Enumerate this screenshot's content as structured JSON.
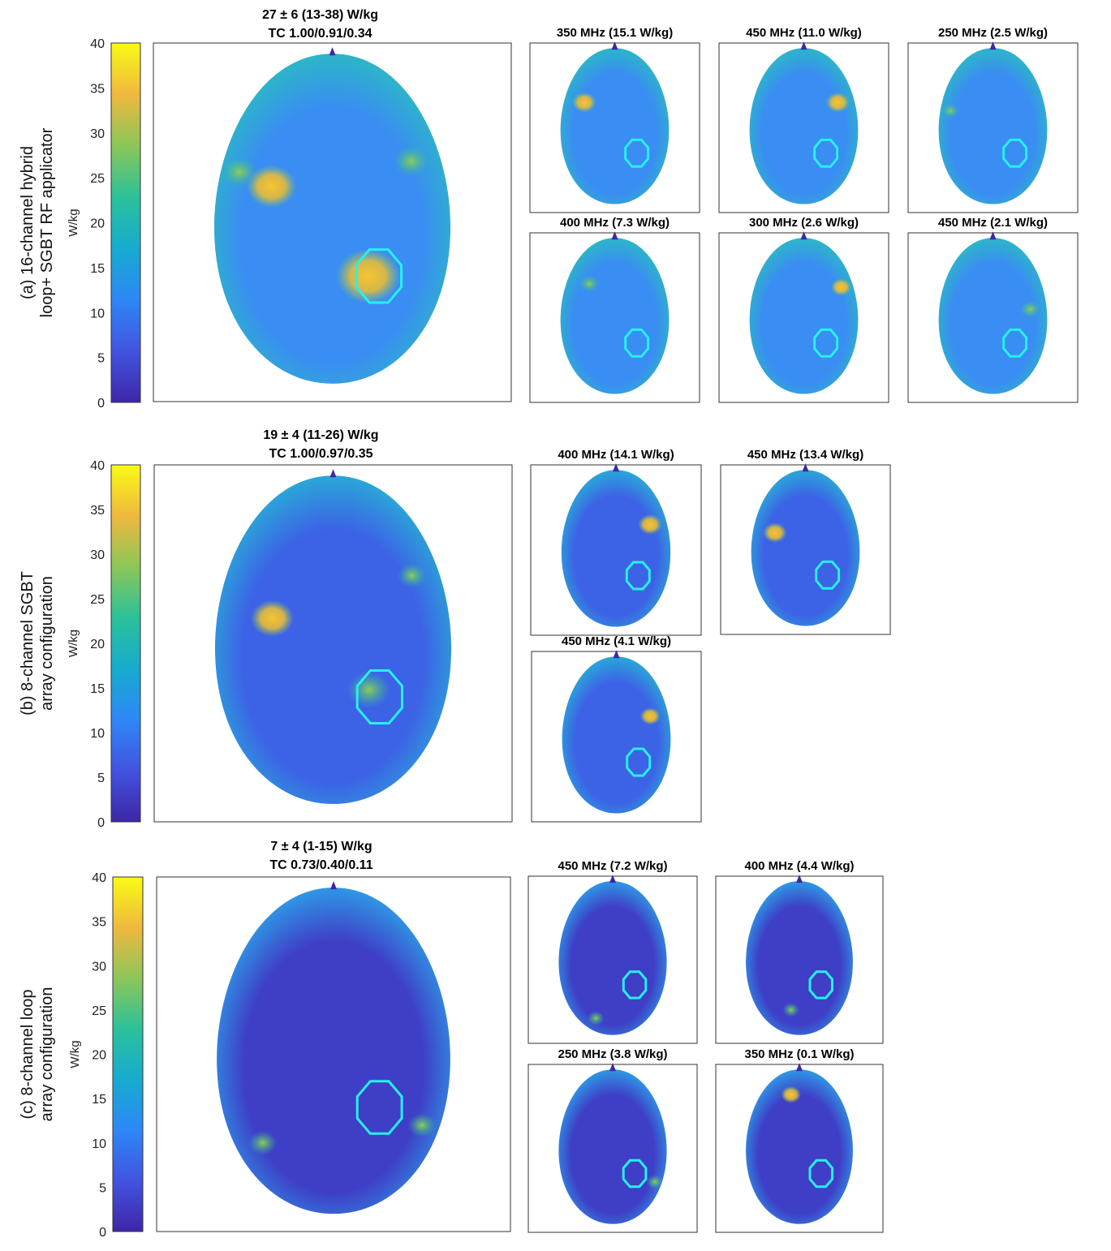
{
  "colorbar": {
    "unit_label": "W/kg",
    "ticks": [
      "40",
      "35",
      "30",
      "25",
      "20",
      "15",
      "10",
      "5",
      "0"
    ],
    "colors": [
      "#3e26a8",
      "#4253e0",
      "#2e87f7",
      "#17abcf",
      "#2bc19a",
      "#8cc659",
      "#f0b83e",
      "#f9fb15"
    ]
  },
  "contour_color": "#27f0f0",
  "chart_data": [
    {
      "type": "heatmap",
      "row_label": [
        "(a)  16-channel hybrid",
        "loop+ SGBT RF applicator"
      ],
      "unit": "W/kg",
      "colorbar_range": [
        0,
        40
      ],
      "main": {
        "title": "27 ± 6 (13-38) W/kg",
        "subtitle": "TC 1.00/0.91/0.34",
        "mean": 27,
        "sd": 6,
        "min": 13,
        "max": 38,
        "tc": [
          1.0,
          0.91,
          0.34
        ]
      },
      "subplots": [
        {
          "title": "350 MHz (15.1 W/kg)",
          "freq_mhz": 350,
          "value": 15.1
        },
        {
          "title": "450 MHz (11.0 W/kg)",
          "freq_mhz": 450,
          "value": 11.0
        },
        {
          "title": "250 MHz (2.5 W/kg)",
          "freq_mhz": 250,
          "value": 2.5
        },
        {
          "title": "400 MHz (7.3 W/kg)",
          "freq_mhz": 400,
          "value": 7.3
        },
        {
          "title": "300 MHz (2.6 W/kg)",
          "freq_mhz": 300,
          "value": 2.6
        },
        {
          "title": "450 MHz (2.1 W/kg)",
          "freq_mhz": 450,
          "value": 2.1
        }
      ]
    },
    {
      "type": "heatmap",
      "row_label": [
        "(b) 8-channel SGBT",
        "array configuration"
      ],
      "unit": "W/kg",
      "colorbar_range": [
        0,
        40
      ],
      "main": {
        "title": "19 ± 4 (11-26) W/kg",
        "subtitle": "TC 1.00/0.97/0.35",
        "mean": 19,
        "sd": 4,
        "min": 11,
        "max": 26,
        "tc": [
          1.0,
          0.97,
          0.35
        ]
      },
      "subplots": [
        {
          "title": "400 MHz (14.1 W/kg)",
          "freq_mhz": 400,
          "value": 14.1
        },
        {
          "title": "450 MHz (13.4 W/kg)",
          "freq_mhz": 450,
          "value": 13.4
        },
        {
          "title": "450 MHz (4.1 W/kg)",
          "freq_mhz": 450,
          "value": 4.1
        }
      ]
    },
    {
      "type": "heatmap",
      "row_label": [
        "(c) 8-channel loop",
        "array configuration"
      ],
      "unit": "W/kg",
      "colorbar_range": [
        0,
        40
      ],
      "main": {
        "title": "7 ± 4 (1-15) W/kg",
        "subtitle": "TC 0.73/0.40/0.11",
        "mean": 7,
        "sd": 4,
        "min": 1,
        "max": 15,
        "tc": [
          0.73,
          0.4,
          0.11
        ]
      },
      "subplots": [
        {
          "title": "450 MHz (7.2 W/kg)",
          "freq_mhz": 450,
          "value": 7.2
        },
        {
          "title": "400 MHz (4.4 W/kg)",
          "freq_mhz": 400,
          "value": 4.4
        },
        {
          "title": "250 MHz (3.8 W/kg)",
          "freq_mhz": 250,
          "value": 3.8
        },
        {
          "title": "350 MHz (0.1 W/kg)",
          "freq_mhz": 350,
          "value": 0.1
        }
      ]
    }
  ]
}
